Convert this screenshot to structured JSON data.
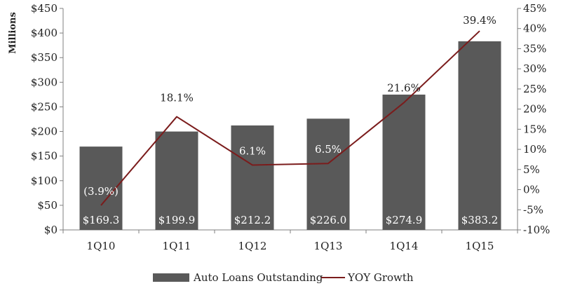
{
  "chart_data": {
    "type": "bar",
    "categories": [
      "1Q10",
      "1Q11",
      "1Q12",
      "1Q13",
      "1Q14",
      "1Q15"
    ],
    "series": [
      {
        "name": "Auto Loans Outstanding",
        "type": "bar",
        "axis": "left",
        "values": [
          169.3,
          199.9,
          212.2,
          226.0,
          274.9,
          383.2
        ],
        "labels": [
          "$169.3",
          "$199.9",
          "$212.2",
          "$226.0",
          "$274.9",
          "$383.2"
        ],
        "color": "#595959"
      },
      {
        "name": "YOY Growth",
        "type": "line",
        "axis": "right",
        "values": [
          -3.9,
          18.1,
          6.1,
          6.5,
          21.6,
          39.4
        ],
        "labels": [
          "(3.9%)",
          "18.1%",
          "6.1%",
          "6.5%",
          "21.6%",
          "39.4%"
        ],
        "color": "#7b1c1c"
      }
    ],
    "ylabel": "Millions",
    "ylim": [
      0,
      450
    ],
    "y_ticks": [
      0,
      50,
      100,
      150,
      200,
      250,
      300,
      350,
      400,
      450
    ],
    "y_tick_labels": [
      "$0",
      "$50",
      "$100",
      "$150",
      "$200",
      "$250",
      "$300",
      "$350",
      "$400",
      "$450"
    ],
    "y2lim": [
      -10,
      45
    ],
    "y2_ticks": [
      -10,
      -5,
      0,
      5,
      10,
      15,
      20,
      25,
      30,
      35,
      40,
      45
    ],
    "y2_tick_labels": [
      "-10%",
      "-5%",
      "0%",
      "5%",
      "10%",
      "15%",
      "20%",
      "25%",
      "30%",
      "35%",
      "40%",
      "45%"
    ],
    "grid": false,
    "legend": {
      "position": "bottom",
      "entries": [
        "Auto Loans Outstanding",
        "YOY Growth"
      ]
    }
  }
}
